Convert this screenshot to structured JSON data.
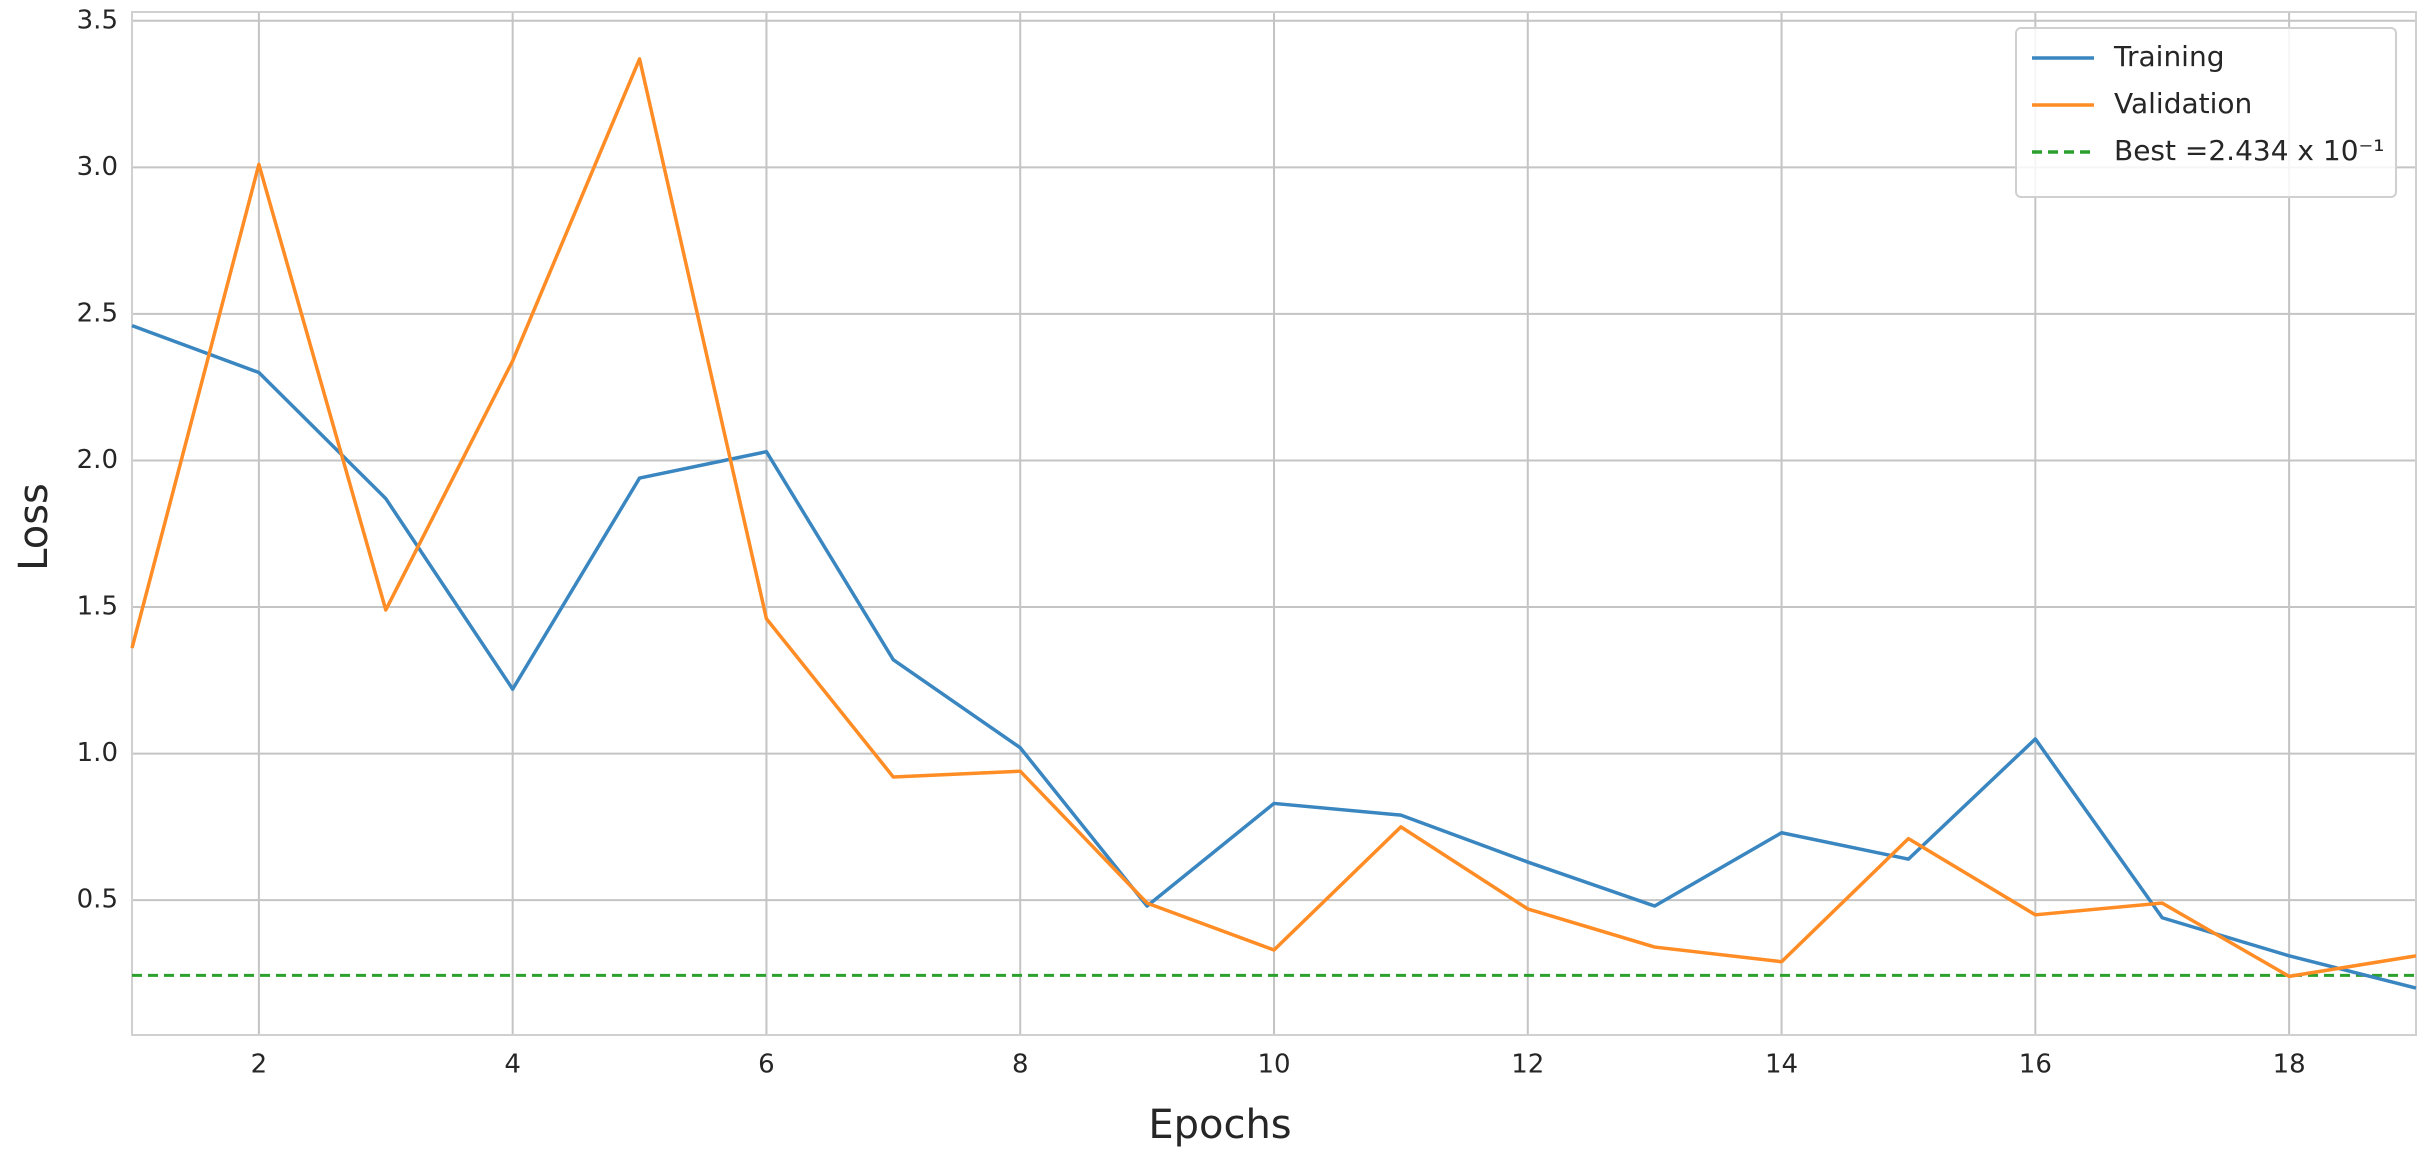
{
  "chart_data": {
    "type": "line",
    "x_label": "Epochs",
    "y_label": "Loss",
    "x": [
      1,
      2,
      3,
      4,
      5,
      6,
      7,
      8,
      9,
      10,
      11,
      12,
      13,
      14,
      15,
      16,
      17,
      18,
      19
    ],
    "series": [
      {
        "name": "Training",
        "color": "#3a86c0",
        "values": [
          2.46,
          2.3,
          1.87,
          1.22,
          1.94,
          2.03,
          1.32,
          1.02,
          0.48,
          0.83,
          0.79,
          0.63,
          0.48,
          0.73,
          0.64,
          1.05,
          0.44,
          0.31,
          0.2
        ]
      },
      {
        "name": "Validation",
        "color": "#ff8c24",
        "values": [
          1.36,
          3.01,
          1.49,
          2.34,
          3.37,
          1.46,
          0.92,
          0.94,
          0.49,
          0.33,
          0.75,
          0.47,
          0.34,
          0.29,
          0.71,
          0.45,
          0.49,
          0.24,
          0.31
        ]
      }
    ],
    "hline": {
      "name": "Best =2.434 x 10⁻¹",
      "value": 0.2434,
      "color": "#2ca02c"
    },
    "xlim": [
      1,
      19
    ],
    "xticks": [
      2,
      4,
      6,
      8,
      10,
      12,
      14,
      16,
      18
    ],
    "ylim": [
      0.04,
      3.53
    ],
    "yticks": [
      {
        "value": 0.5,
        "label": "0.5"
      },
      {
        "value": 1,
        "label": "1.0"
      },
      {
        "value": 1.5,
        "label": "1.5"
      },
      {
        "value": 2,
        "label": "2.0"
      },
      {
        "value": 2.5,
        "label": "2.5"
      },
      {
        "value": 3,
        "label": "3.0"
      },
      {
        "value": 3.5,
        "label": "3.5"
      }
    ],
    "grid": true,
    "legend_position": "upper right"
  }
}
